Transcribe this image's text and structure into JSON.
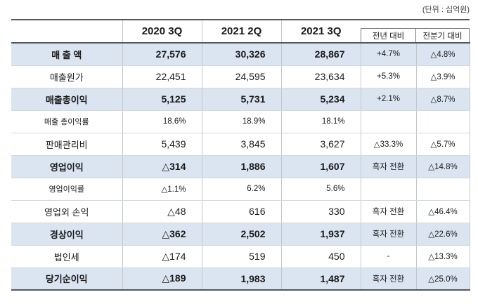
{
  "unit_label": "(단위 : 십억원)",
  "colors": {
    "highlight-bg": "#dbe5f1",
    "border-dark": "#54585d",
    "border-light-h": "#d3d8de",
    "border-light-v": "#c2c7cd",
    "box-border": "#77797c",
    "text": "#1a1a1a",
    "unit-text": "#3c3c3c"
  },
  "table": {
    "columns": [
      {
        "key": "metric",
        "label": ""
      },
      {
        "key": "q_2020_3",
        "label": "2020 3Q"
      },
      {
        "key": "q_2021_2",
        "label": "2021 2Q"
      },
      {
        "key": "q_2021_3",
        "label": "2021 3Q"
      },
      {
        "key": "yoy",
        "label": "전년 대비"
      },
      {
        "key": "qoq",
        "label": "전분기 대비"
      }
    ],
    "rows": [
      {
        "label": "매 출 액",
        "values": [
          "27,576",
          "30,326",
          "28,867"
        ],
        "yoy": "+4.7%",
        "qoq": "△4.8%",
        "style": "highlight"
      },
      {
        "label": "매출원가",
        "values": [
          "22,451",
          "24,595",
          "23,634"
        ],
        "yoy": "+5.3%",
        "qoq": "△3.9%",
        "style": "normal"
      },
      {
        "label": "매출총이익",
        "values": [
          "5,125",
          "5,731",
          "5,234"
        ],
        "yoy": "+2.1%",
        "qoq": "△8.7%",
        "style": "highlight"
      },
      {
        "label": "매출 총이익률",
        "values": [
          "18.6%",
          "18.9%",
          "18.1%"
        ],
        "yoy": "",
        "qoq": "",
        "style": "ratio"
      },
      {
        "label": "판매관리비",
        "values": [
          "5,439",
          "3,845",
          "3,627"
        ],
        "yoy": "△33.3%",
        "qoq": "△5.7%",
        "style": "normal"
      },
      {
        "label": "영업이익",
        "values": [
          "△314",
          "1,886",
          "1,607"
        ],
        "yoy": "흑자 전환",
        "qoq": "△14.8%",
        "style": "highlight"
      },
      {
        "label": "영업이익률",
        "values": [
          "△1.1%",
          "6.2%",
          "5.6%"
        ],
        "yoy": "",
        "qoq": "",
        "style": "ratio"
      },
      {
        "label": "영업외 손익",
        "values": [
          "△48",
          "616",
          "330"
        ],
        "yoy": "흑자 전환",
        "qoq": "△46.4%",
        "style": "normal"
      },
      {
        "label": "경상이익",
        "values": [
          "△362",
          "2,502",
          "1,937"
        ],
        "yoy": "흑자 전환",
        "qoq": "△22.6%",
        "style": "highlight"
      },
      {
        "label": "법인세",
        "values": [
          "△174",
          "519",
          "450"
        ],
        "yoy": "-",
        "qoq": "△13.3%",
        "style": "normal"
      },
      {
        "label": "당기순이익",
        "values": [
          "△189",
          "1,983",
          "1,487"
        ],
        "yoy": "흑자 전환",
        "qoq": "△25.0%",
        "style": "highlight"
      }
    ]
  }
}
